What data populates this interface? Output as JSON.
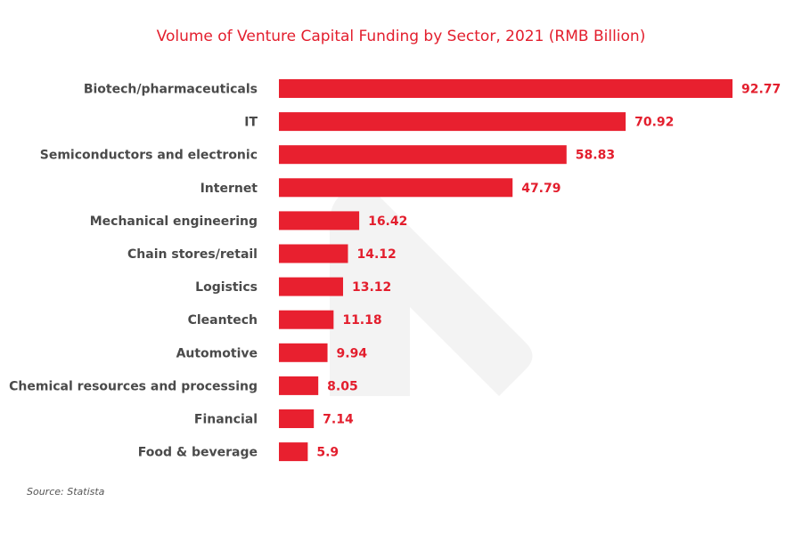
{
  "chart_data": {
    "type": "bar",
    "orientation": "horizontal",
    "title": "Volume of Venture Capital Funding by Sector, 2021 (RMB Billion)",
    "xlabel": "",
    "ylabel": "",
    "xlim": [
      0,
      92.77
    ],
    "grid": false,
    "categories": [
      "Biotech/pharmaceuticals",
      "IT",
      "Semiconductors and electronic",
      "Internet",
      "Mechanical engineering",
      "Chain stores/retail",
      "Logistics",
      "Cleantech",
      "Automotive",
      "Chemical resources and processing",
      "Financial",
      "Food & beverage"
    ],
    "values": [
      92.77,
      70.92,
      58.83,
      47.79,
      16.42,
      14.12,
      13.12,
      11.18,
      9.94,
      8.05,
      7.14,
      5.9
    ],
    "value_labels": [
      "92.77",
      "70.92",
      "58.83",
      "47.79",
      "16.42",
      "14.12",
      "13.12",
      "11.18",
      "9.94",
      "8.05",
      "7.14",
      "5.9"
    ],
    "bar_color": "#e8202f",
    "label_color": "#e31e2d",
    "source": "Source: Statista"
  }
}
